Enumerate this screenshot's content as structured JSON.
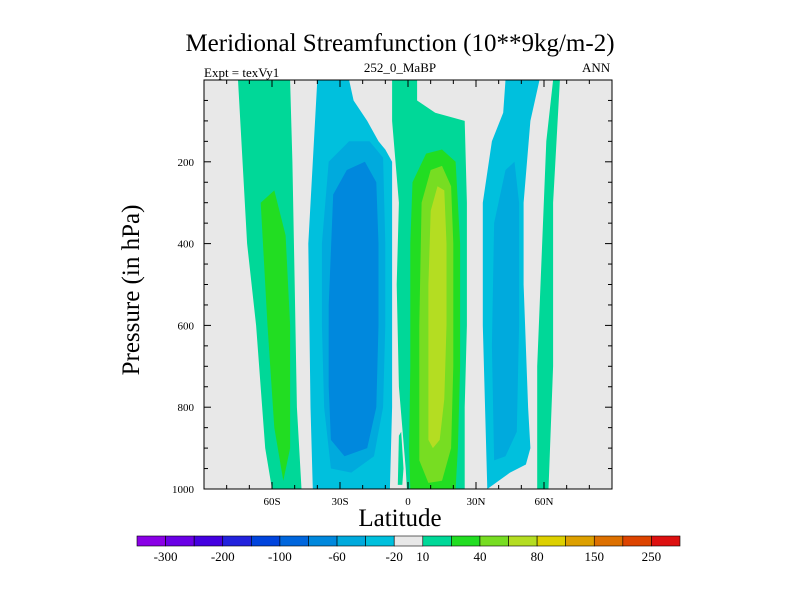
{
  "chart_data": {
    "type": "heatmap",
    "title": "Meridional Streamfunction (10**9kg/m-2)",
    "left_label": "Expt = texVy1",
    "center_label": "252_0_MaBP",
    "right_label": "ANN",
    "xlabel": "Latitude",
    "ylabel": "Pressure (in hPa)",
    "xlim": [
      -90,
      90
    ],
    "ylim": [
      1000,
      0
    ],
    "x_ticks": [
      {
        "value": -60,
        "label": "60S"
      },
      {
        "value": -30,
        "label": "30S"
      },
      {
        "value": 0,
        "label": "0"
      },
      {
        "value": 30,
        "label": "30N"
      },
      {
        "value": 60,
        "label": "60N"
      }
    ],
    "y_ticks": [
      {
        "value": 200,
        "label": "200"
      },
      {
        "value": 400,
        "label": "400"
      },
      {
        "value": 600,
        "label": "600"
      },
      {
        "value": 800,
        "label": "800"
      },
      {
        "value": 1000,
        "label": "1000"
      }
    ],
    "colorbar": {
      "colors": [
        "#8a00e6",
        "#6a00e6",
        "#4400e0",
        "#2222dd",
        "#0044dd",
        "#0066dd",
        "#0088dd",
        "#00aadd",
        "#00c0dd",
        "#e8e8e8",
        "#00d898",
        "#22dd22",
        "#77dd22",
        "#b4dd22",
        "#ddd000",
        "#dda000",
        "#dd7000",
        "#dd4400",
        "#dd1010"
      ],
      "labels": [
        {
          "after_box": 1,
          "text": "-300"
        },
        {
          "after_box": 3,
          "text": "-200"
        },
        {
          "after_box": 5,
          "text": "-100"
        },
        {
          "after_box": 7,
          "text": "-60"
        },
        {
          "after_box": 9,
          "text": "-20"
        },
        {
          "after_box": 10,
          "text": "10"
        },
        {
          "after_box": 12,
          "text": "40"
        },
        {
          "after_box": 14,
          "text": "80"
        },
        {
          "after_box": 16,
          "text": "150"
        },
        {
          "after_box": 18,
          "text": "250"
        }
      ]
    },
    "background_color": "#e8e8e8",
    "regions": [
      {
        "name": "nh-subtropical-cell-outer",
        "color": "#00d898",
        "bounds": [
          [
            -0.5,
            1000
          ],
          [
            -1,
            950
          ],
          [
            -4,
            750
          ],
          [
            -5,
            500
          ],
          [
            -4,
            300
          ],
          [
            -7,
            100
          ],
          [
            -7,
            0
          ],
          [
            4,
            0
          ],
          [
            4,
            50
          ],
          [
            12,
            80
          ],
          [
            25,
            100
          ],
          [
            26,
            300
          ],
          [
            26,
            600
          ],
          [
            25,
            800
          ],
          [
            25,
            1000
          ]
        ]
      },
      {
        "name": "nh-subtropical-cell",
        "color": "#22dd22",
        "bounds": [
          [
            1,
            1000
          ],
          [
            0.5,
            900
          ],
          [
            1,
            700
          ],
          [
            1,
            400
          ],
          [
            2,
            250
          ],
          [
            8,
            180
          ],
          [
            15,
            170
          ],
          [
            21,
            200
          ],
          [
            23,
            400
          ],
          [
            23,
            700
          ],
          [
            22,
            900
          ],
          [
            21,
            1000
          ]
        ]
      },
      {
        "name": "nh-subtropical-cell-inner",
        "color": "#77dd22",
        "bounds": [
          [
            5,
            930
          ],
          [
            5,
            600
          ],
          [
            6,
            300
          ],
          [
            10,
            220
          ],
          [
            15,
            210
          ],
          [
            19,
            260
          ],
          [
            20,
            400
          ],
          [
            20,
            700
          ],
          [
            19,
            900
          ],
          [
            15,
            980
          ],
          [
            9,
            985
          ]
        ]
      },
      {
        "name": "nh-subtropical-cell-core",
        "color": "#b4dd22",
        "bounds": [
          [
            9,
            880
          ],
          [
            9,
            500
          ],
          [
            10,
            320
          ],
          [
            13,
            260
          ],
          [
            16,
            270
          ],
          [
            17,
            400
          ],
          [
            17,
            600
          ],
          [
            16,
            780
          ],
          [
            14,
            880
          ],
          [
            11,
            900
          ]
        ]
      },
      {
        "name": "sh-ferrel-cell-outer",
        "color": "#00c0dd",
        "bounds": [
          [
            -42,
            1000
          ],
          [
            -43,
            800
          ],
          [
            -44,
            400
          ],
          [
            -42,
            200
          ],
          [
            -40,
            0
          ],
          [
            -26,
            0
          ],
          [
            -24,
            50
          ],
          [
            -18,
            100
          ],
          [
            -13,
            150
          ],
          [
            -10,
            170
          ],
          [
            -7,
            200
          ],
          [
            -7,
            500
          ],
          [
            -7,
            800
          ],
          [
            -8,
            1000
          ]
        ]
      },
      {
        "name": "sh-ferrel-cell",
        "color": "#00aadd",
        "bounds": [
          [
            -34,
            950
          ],
          [
            -37,
            800
          ],
          [
            -38,
            600
          ],
          [
            -38,
            400
          ],
          [
            -35,
            200
          ],
          [
            -26,
            150
          ],
          [
            -17,
            150
          ],
          [
            -11,
            190
          ],
          [
            -10,
            400
          ],
          [
            -10,
            600
          ],
          [
            -11,
            800
          ],
          [
            -15,
            920
          ],
          [
            -25,
            960
          ]
        ]
      },
      {
        "name": "sh-ferrel-cell-core",
        "color": "#0088dd",
        "bounds": [
          [
            -34,
            880
          ],
          [
            -35,
            750
          ],
          [
            -35,
            550
          ],
          [
            -33,
            280
          ],
          [
            -27,
            220
          ],
          [
            -19,
            200
          ],
          [
            -14,
            250
          ],
          [
            -13,
            400
          ],
          [
            -13,
            600
          ],
          [
            -14,
            800
          ],
          [
            -18,
            900
          ],
          [
            -28,
            920
          ]
        ]
      },
      {
        "name": "nh-ferrel-cell-outer",
        "color": "#00c0dd",
        "bounds": [
          [
            35,
            1000
          ],
          [
            33,
            600
          ],
          [
            33,
            300
          ],
          [
            37,
            150
          ],
          [
            42,
            80
          ],
          [
            43,
            0
          ],
          [
            58,
            0
          ],
          [
            54,
            100
          ],
          [
            51,
            300
          ],
          [
            51,
            500
          ],
          [
            53,
            800
          ],
          [
            54,
            900
          ],
          [
            52,
            940
          ],
          [
            45,
            960
          ]
        ]
      },
      {
        "name": "nh-ferrel-cell",
        "color": "#00aadd",
        "bounds": [
          [
            38,
            930
          ],
          [
            37,
            650
          ],
          [
            38,
            350
          ],
          [
            43,
            220
          ],
          [
            47,
            200
          ],
          [
            49,
            300
          ],
          [
            49,
            600
          ],
          [
            48,
            860
          ],
          [
            43,
            920
          ]
        ]
      },
      {
        "name": "sh-polar-cell-outer",
        "color": "#00d898",
        "bounds": [
          [
            -60,
            1000
          ],
          [
            -63,
            900
          ],
          [
            -67,
            600
          ],
          [
            -71,
            400
          ],
          [
            -75,
            0
          ],
          [
            -52,
            0
          ],
          [
            -51,
            200
          ],
          [
            -50,
            500
          ],
          [
            -49,
            800
          ],
          [
            -47,
            1000
          ]
        ]
      },
      {
        "name": "sh-polar-cell",
        "color": "#22dd22",
        "bounds": [
          [
            -55,
            980
          ],
          [
            -59,
            850
          ],
          [
            -62,
            600
          ],
          [
            -65,
            300
          ],
          [
            -59,
            270
          ],
          [
            -54,
            380
          ],
          [
            -52,
            600
          ],
          [
            -52,
            900
          ]
        ]
      },
      {
        "name": "nh-polar-cell-outer",
        "color": "#00d898",
        "bounds": [
          [
            57,
            1000
          ],
          [
            57,
            700
          ],
          [
            61,
            150
          ],
          [
            64,
            0
          ],
          [
            67,
            0
          ],
          [
            64,
            300
          ],
          [
            64,
            700
          ],
          [
            62,
            1000
          ]
        ]
      },
      {
        "name": "equatorial-sliver",
        "color": "#00d898",
        "bounds": [
          [
            -4.5,
            990
          ],
          [
            -4,
            870
          ],
          [
            -3,
            860
          ],
          [
            -2,
            950
          ],
          [
            -2.5,
            990
          ]
        ]
      }
    ]
  }
}
